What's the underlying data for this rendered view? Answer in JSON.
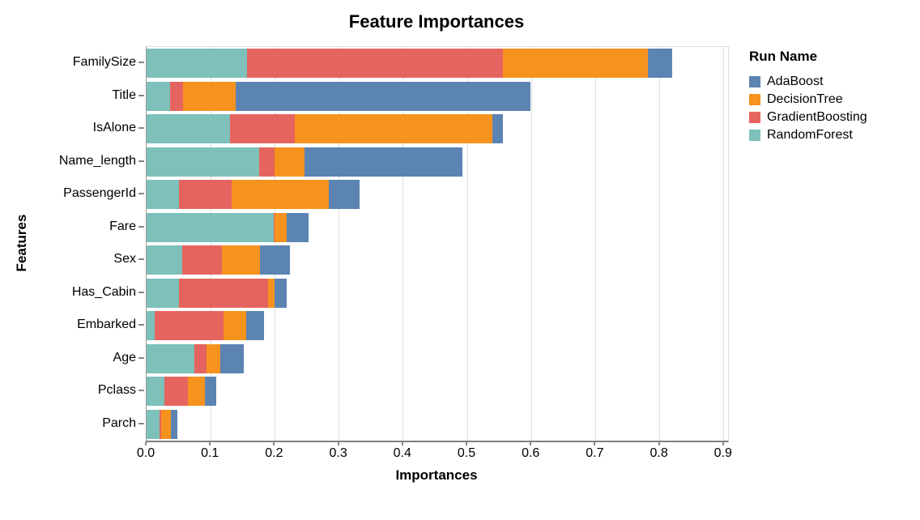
{
  "chart_data": {
    "type": "bar",
    "orientation": "horizontal",
    "stacked": true,
    "title": "Feature Importances",
    "xlabel": "Importances",
    "ylabel": "Features",
    "legend_title": "Run Name",
    "grid": true,
    "legend_position": "right",
    "xlim": [
      0,
      0.906
    ],
    "x_ticks": [
      "0.0",
      "0.1",
      "0.2",
      "0.3",
      "0.4",
      "0.5",
      "0.6",
      "0.7",
      "0.8",
      "0.9"
    ],
    "categories": [
      "FamilySize",
      "Title",
      "IsAlone",
      "Name_length",
      "PassengerId",
      "Fare",
      "Sex",
      "Has_Cabin",
      "Embarked",
      "Age",
      "Pclass",
      "Parch"
    ],
    "series": [
      {
        "name": "RandomForest",
        "color": "#7ec0ba",
        "values": [
          0.156,
          0.037,
          0.13,
          0.176,
          0.05,
          0.198,
          0.055,
          0.05,
          0.013,
          0.075,
          0.028,
          0.02
        ]
      },
      {
        "name": "GradientBoosting",
        "color": "#e6645f",
        "values": [
          0.399,
          0.02,
          0.101,
          0.023,
          0.082,
          0.001,
          0.063,
          0.139,
          0.107,
          0.018,
          0.037,
          0.003
        ]
      },
      {
        "name": "DecisionTree",
        "color": "#f6931e",
        "values": [
          0.226,
          0.082,
          0.308,
          0.047,
          0.152,
          0.019,
          0.059,
          0.011,
          0.035,
          0.022,
          0.026,
          0.015
        ]
      },
      {
        "name": "AdaBoost",
        "color": "#5c84b2",
        "values": [
          0.038,
          0.46,
          0.017,
          0.246,
          0.048,
          0.035,
          0.047,
          0.019,
          0.028,
          0.037,
          0.018,
          0.01
        ]
      }
    ],
    "legend_order": [
      "AdaBoost",
      "DecisionTree",
      "GradientBoosting",
      "RandomForest"
    ],
    "axis_colors": {
      "grid": "#dddddd",
      "domain": "#7f7f7f",
      "tick": "#888888"
    }
  }
}
